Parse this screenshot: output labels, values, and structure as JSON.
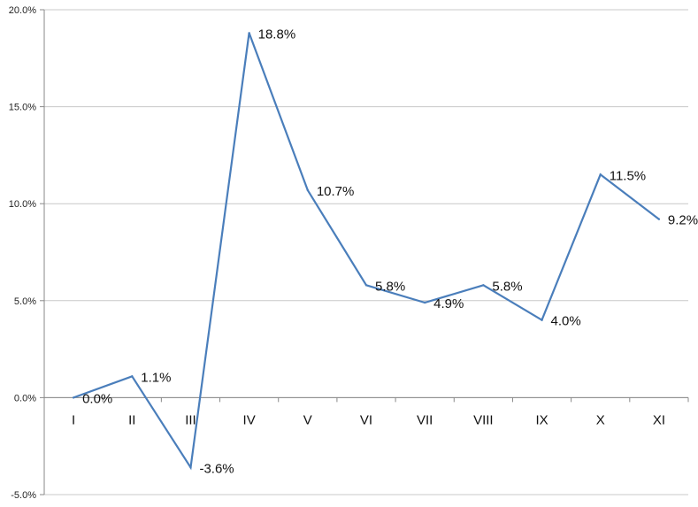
{
  "chart_data": {
    "type": "line",
    "categories": [
      "I",
      "II",
      "III",
      "IV",
      "V",
      "VI",
      "VII",
      "VIII",
      "IX",
      "X",
      "XI"
    ],
    "series": [
      {
        "values": [
          0.0,
          1.1,
          -3.6,
          18.8,
          10.7,
          5.8,
          4.9,
          5.8,
          4.0,
          11.5,
          9.2
        ]
      }
    ],
    "data_labels": [
      "0.0%",
      "1.1%",
      "-3.6%",
      "18.8%",
      "10.7%",
      "5.8%",
      "4.9%",
      "5.8%",
      "4.0%",
      "11.5%",
      "9.2%"
    ],
    "y_ticks": [
      20,
      15,
      10,
      5,
      0,
      -5
    ],
    "y_tick_labels": [
      "20.0%",
      "15.0%",
      "10.0%",
      "5.0%",
      "0.0%",
      "-5.0%"
    ],
    "ylim": [
      -5,
      20
    ],
    "title": "",
    "xlabel": "",
    "ylabel": "",
    "grid": true,
    "legend": "none",
    "line_color": "#4a7ebb",
    "grid_color": "#c8c8c8"
  }
}
